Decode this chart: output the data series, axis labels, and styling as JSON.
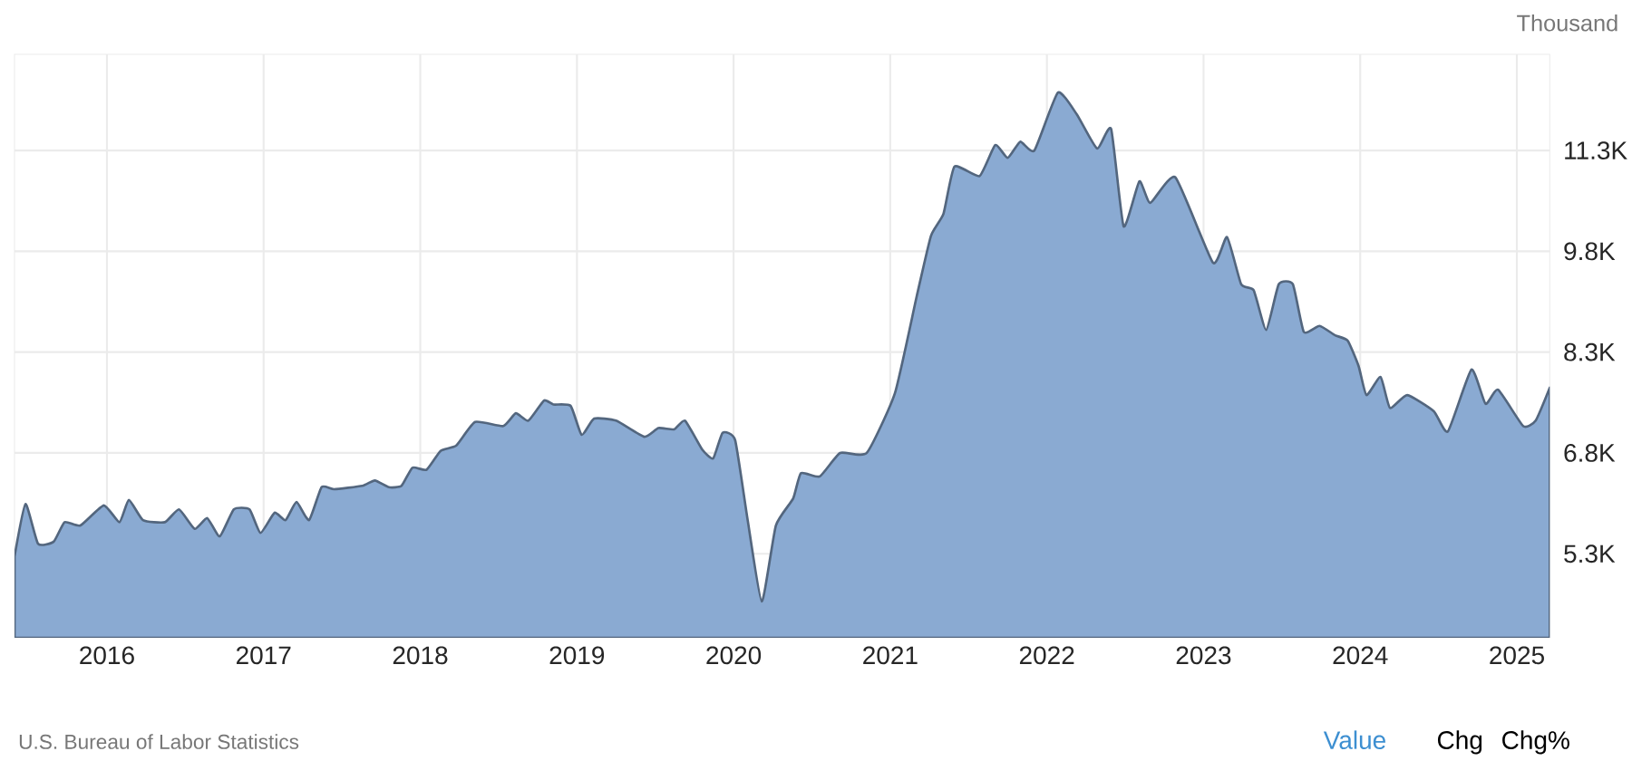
{
  "chart_data": {
    "type": "area",
    "ylabel": "Thousand",
    "color": "#8aaad2",
    "x": [
      2015.41,
      2015.48,
      2015.56,
      2015.66,
      2015.73,
      2015.83,
      2015.98,
      2016.08,
      2016.14,
      2016.23,
      2016.37,
      2016.46,
      2016.56,
      2016.64,
      2016.72,
      2016.81,
      2016.91,
      2016.98,
      2017.07,
      2017.14,
      2017.21,
      2017.29,
      2017.37,
      2017.45,
      2017.63,
      2017.71,
      2017.8,
      2017.88,
      2017.95,
      2018.04,
      2018.13,
      2018.23,
      2018.35,
      2018.53,
      2018.61,
      2018.69,
      2018.79,
      2018.85,
      2018.96,
      2019.03,
      2019.11,
      2019.25,
      2019.43,
      2019.52,
      2019.62,
      2019.69,
      2019.8,
      2019.87,
      2019.93,
      2020.01,
      2020.09,
      2020.18,
      2020.27,
      2020.38,
      2020.43,
      2020.55,
      2020.68,
      2020.85,
      2021.03,
      2021.17,
      2021.26,
      2021.34,
      2021.41,
      2021.57,
      2021.67,
      2021.75,
      2021.83,
      2021.92,
      2022.07,
      2022.19,
      2022.32,
      2022.41,
      2022.49,
      2022.59,
      2022.66,
      2022.82,
      2023.06,
      2023.15,
      2023.24,
      2023.32,
      2023.4,
      2023.48,
      2023.57,
      2023.64,
      2023.74,
      2023.84,
      2023.92,
      2023.99,
      2024.04,
      2024.13,
      2024.19,
      2024.3,
      2024.47,
      2024.56,
      2024.71,
      2024.8,
      2024.88,
      2025.04,
      2025.12,
      2025.21
    ],
    "values": [
      5260,
      6040,
      5450,
      5480,
      5770,
      5720,
      6020,
      5770,
      6100,
      5800,
      5770,
      5960,
      5670,
      5830,
      5560,
      5960,
      5960,
      5610,
      5910,
      5800,
      6070,
      5800,
      6290,
      6260,
      6310,
      6390,
      6290,
      6310,
      6580,
      6550,
      6830,
      6910,
      7260,
      7200,
      7390,
      7280,
      7580,
      7520,
      7500,
      7070,
      7310,
      7280,
      7040,
      7170,
      7150,
      7280,
      6850,
      6720,
      7100,
      6990,
      5800,
      4590,
      5720,
      6120,
      6500,
      6450,
      6800,
      6800,
      7690,
      9140,
      10030,
      10360,
      11060,
      10920,
      11380,
      11190,
      11430,
      11300,
      12160,
      11840,
      11330,
      11620,
      10170,
      10840,
      10520,
      10900,
      9630,
      10010,
      9310,
      9220,
      8630,
      9310,
      9310,
      8600,
      8690,
      8550,
      8470,
      8090,
      7660,
      7930,
      7470,
      7660,
      7420,
      7120,
      8040,
      7530,
      7740,
      7200,
      7280,
      7770
    ],
    "xlim": [
      2015.41,
      2025.21
    ],
    "ylim": [
      4050,
      12730
    ],
    "xticks": [
      2016,
      2017,
      2018,
      2019,
      2020,
      2021,
      2022,
      2023,
      2024,
      2025
    ],
    "yticks": [
      {
        "value": 5300,
        "label": "5.3K"
      },
      {
        "value": 6800,
        "label": "6.8K"
      },
      {
        "value": 8300,
        "label": "8.3K"
      },
      {
        "value": 9800,
        "label": "9.8K"
      },
      {
        "value": 11300,
        "label": "11.3K"
      }
    ],
    "grid": true,
    "annotations": [
      "U.S. Bureau of Labor Statistics",
      "Value",
      "Chg",
      "Chg%"
    ]
  }
}
